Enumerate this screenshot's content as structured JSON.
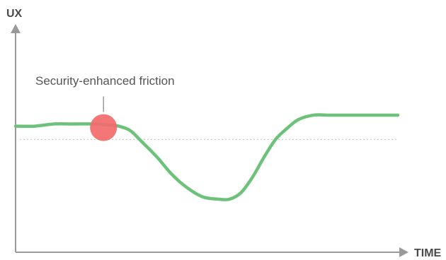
{
  "chart_data": {
    "type": "line",
    "title": "",
    "xlabel": "TIME",
    "ylabel": "UX",
    "xlim": [
      0,
      100
    ],
    "ylim": [
      0,
      100
    ],
    "grid": false,
    "legend": "none",
    "baseline": {
      "y": 51,
      "style": "dotted"
    },
    "series": [
      {
        "color": "#6cc27a",
        "x": [
          0,
          5,
          10,
          15,
          20,
          25,
          27,
          30,
          33,
          37,
          41,
          45,
          49,
          53,
          56,
          59,
          62,
          65,
          68,
          71,
          74,
          78,
          82,
          86,
          90,
          95,
          100
        ],
        "y": [
          57,
          57,
          58,
          58,
          58,
          57.5,
          57,
          55,
          50,
          43,
          35,
          29,
          25,
          24,
          24,
          27,
          34,
          43,
          51,
          56,
          60,
          62,
          62,
          62,
          62,
          62,
          62
        ]
      }
    ],
    "annotations": [
      {
        "text": "Security-enhanced friction",
        "x": 23,
        "y": 57,
        "marker_color": "#f26b6b"
      }
    ]
  }
}
